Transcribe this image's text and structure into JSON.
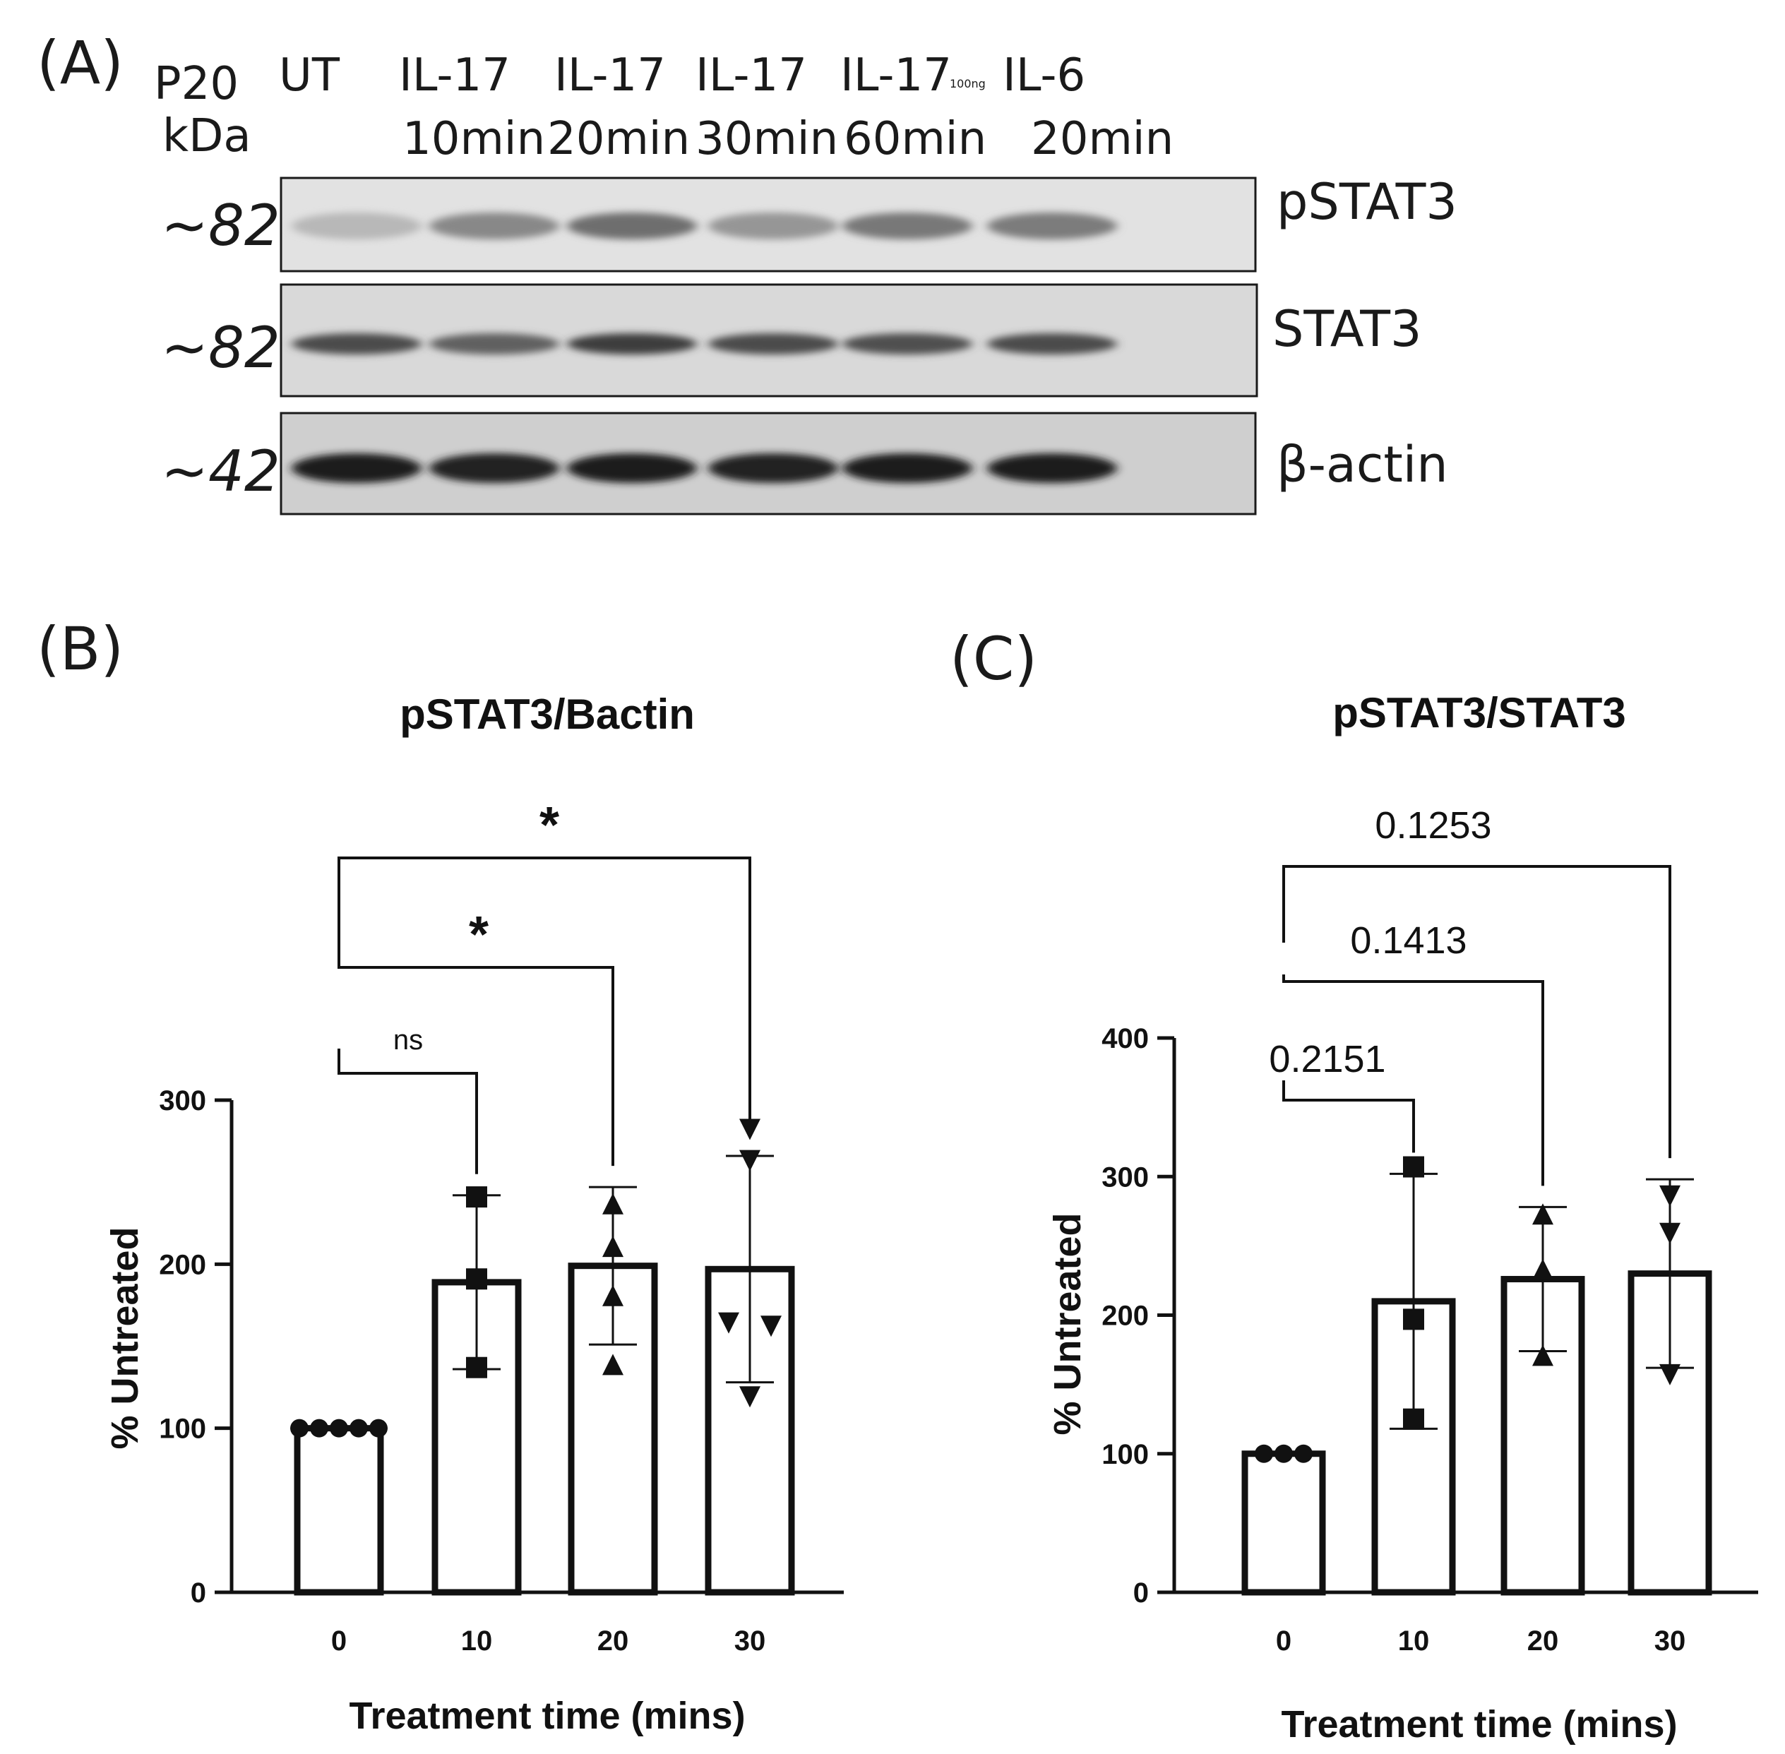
{
  "panel_labels": {
    "a": "(A)",
    "b": "(B)",
    "c": "(C)"
  },
  "blot": {
    "passage": "P20",
    "kda_label": "kDa",
    "lanes": [
      {
        "top": "UT",
        "bottom": ""
      },
      {
        "top": "IL-17",
        "bottom": "10min"
      },
      {
        "top": "IL-17",
        "bottom": "20min"
      },
      {
        "top": "IL-17",
        "bottom": "30min"
      },
      {
        "top": "IL-17",
        "sub": "100ng",
        "bottom": "60min"
      },
      {
        "top": "IL-6",
        "bottom": "20min"
      }
    ],
    "rows": [
      {
        "kda": "~82",
        "protein": "pSTAT3",
        "band_intensity": [
          0.18,
          0.42,
          0.55,
          0.35,
          0.5,
          0.48
        ]
      },
      {
        "kda": "~82",
        "protein": "STAT3",
        "band_intensity": [
          0.72,
          0.62,
          0.8,
          0.72,
          0.7,
          0.72
        ]
      },
      {
        "kda": "~42",
        "protein": "β-actin",
        "band_intensity": [
          0.95,
          0.92,
          0.95,
          0.92,
          0.95,
          0.95
        ]
      }
    ]
  },
  "chart_data": [
    {
      "type": "bar",
      "title": "pSTAT3/Bactin",
      "xlabel": "Treatment time (mins)",
      "ylabel": "% Untreated",
      "categories": [
        "0",
        "10",
        "20",
        "30"
      ],
      "ylim": [
        0,
        300
      ],
      "yticks": [
        "0",
        "100",
        "200",
        "300"
      ],
      "values": [
        100,
        189,
        199,
        197
      ],
      "error": [
        0,
        53,
        48,
        69
      ],
      "markers": [
        "circle",
        "square",
        "triangle-up",
        "triangle-down"
      ],
      "points": [
        [
          100,
          100,
          100,
          100,
          100
        ],
        [
          241,
          191,
          137
        ],
        [
          236,
          210,
          180,
          138
        ],
        [
          283,
          264,
          165,
          163,
          120
        ]
      ],
      "comparisons": [
        {
          "from": "0",
          "to": "10",
          "label": "ns"
        },
        {
          "from": "0",
          "to": "20",
          "label": "*"
        },
        {
          "from": "0",
          "to": "30",
          "label": "*"
        }
      ]
    },
    {
      "type": "bar",
      "title": "pSTAT3/STAT3",
      "xlabel": "Treatment time (mins)",
      "ylabel": "% Untreated",
      "categories": [
        "0",
        "10",
        "20",
        "30"
      ],
      "ylim": [
        0,
        400
      ],
      "yticks": [
        "0",
        "100",
        "200",
        "300",
        "400"
      ],
      "values": [
        100,
        210,
        226,
        230
      ],
      "error": [
        0,
        92,
        52,
        68
      ],
      "markers": [
        "circle",
        "square",
        "triangle-up",
        "triangle-down"
      ],
      "points": [
        [
          100,
          100,
          100
        ],
        [
          307,
          197,
          125
        ],
        [
          272,
          232,
          170
        ],
        [
          287,
          260,
          158
        ]
      ],
      "comparisons": [
        {
          "from": "0",
          "to": "10",
          "label": "0.2151"
        },
        {
          "from": "0",
          "to": "20",
          "label": "0.1413"
        },
        {
          "from": "0",
          "to": "30",
          "label": "0.1253"
        }
      ]
    }
  ]
}
